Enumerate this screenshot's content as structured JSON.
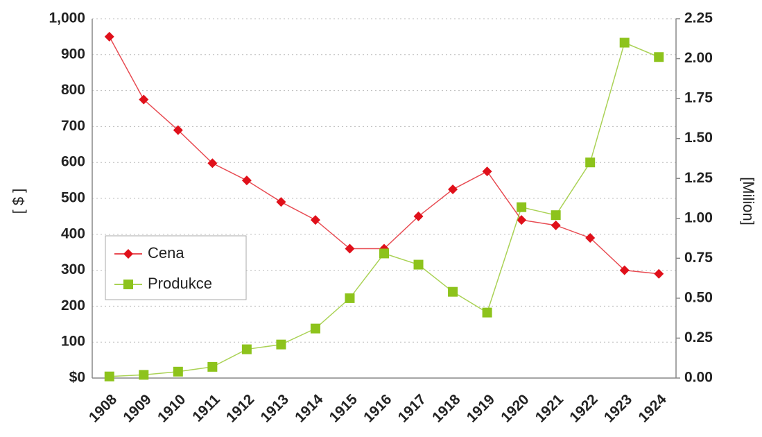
{
  "chart_data": {
    "type": "line",
    "y_label": "[ $ ]",
    "y2_label": "[Milion]",
    "categories": [
      "1908",
      "1909",
      "1910",
      "1911",
      "1912",
      "1913",
      "1914",
      "1915",
      "1916",
      "1917",
      "1918",
      "1919",
      "1920",
      "1921",
      "1922",
      "1923",
      "1924"
    ],
    "series": [
      {
        "name": "Cena",
        "color": "#e0101a",
        "marker": "diamond",
        "values": [
          950,
          775,
          690,
          598,
          550,
          490,
          440,
          360,
          360,
          450,
          525,
          575,
          440,
          425,
          390,
          300,
          290
        ]
      },
      {
        "name": "Produkce",
        "color": "#8dc31c",
        "marker": "square",
        "axis": "y2",
        "values": [
          0.01,
          0.02,
          0.04,
          0.07,
          0.18,
          0.21,
          0.31,
          0.5,
          0.78,
          0.71,
          0.54,
          0.41,
          1.07,
          1.02,
          1.35,
          2.1,
          2.01
        ]
      }
    ],
    "ylim": [
      0,
      1000
    ],
    "yticks": [
      {
        "value": 0,
        "label": "$0"
      },
      100,
      200,
      300,
      400,
      500,
      600,
      700,
      800,
      900,
      {
        "value": 1000,
        "label": "1,000"
      }
    ],
    "y2lim": [
      0,
      2.25
    ],
    "y2ticks": [
      {
        "value": 0,
        "label": "0.00"
      },
      0.25,
      {
        "value": 0.5,
        "label": "0.50"
      },
      0.75,
      {
        "value": 1,
        "label": "1.00"
      },
      1.25,
      {
        "value": 1.5,
        "label": "1.50"
      },
      1.75,
      {
        "value": 2,
        "label": "2.00"
      },
      2.25
    ],
    "grid": true,
    "legend": "left"
  }
}
